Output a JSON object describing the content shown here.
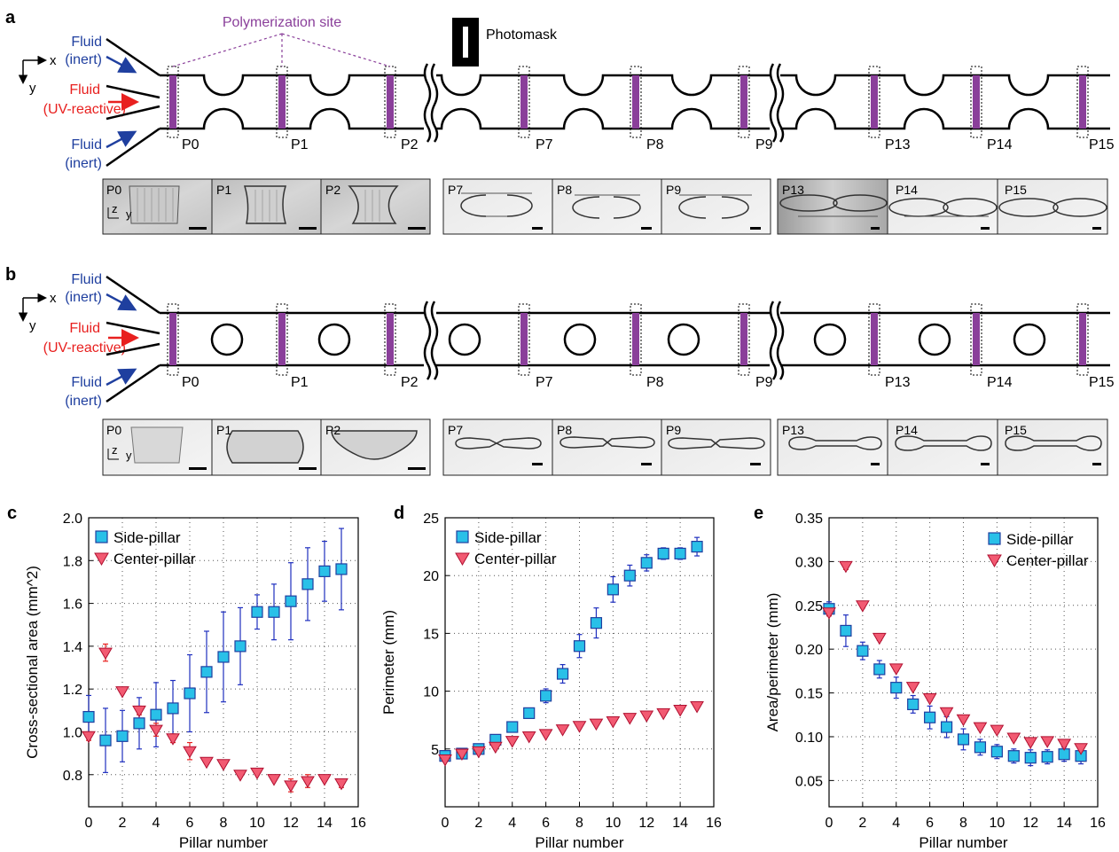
{
  "panels": {
    "a": {
      "letter": "a",
      "callout": "Polymerization site",
      "photomask": "Photomask",
      "axis_x": "x",
      "axis_y": "y",
      "inlet_top": [
        "Fluid",
        "(inert)"
      ],
      "inlet_mid": [
        "Fluid",
        "(UV-reactive)"
      ],
      "inlet_bot": [
        "Fluid",
        "(inert)"
      ],
      "pillar_labels": [
        "P0",
        "P1",
        "P2",
        "P7",
        "P8",
        "P9",
        "P13",
        "P14",
        "P15"
      ],
      "micrograph_labels": [
        "P0",
        "P1",
        "P2",
        "P7",
        "P8",
        "P9",
        "P13",
        "P14",
        "P15"
      ],
      "micro_axes": {
        "z": "z",
        "y": "y"
      }
    },
    "b": {
      "letter": "b",
      "axis_x": "x",
      "axis_y": "y",
      "inlet_top": [
        "Fluid",
        "(inert)"
      ],
      "inlet_mid": [
        "Fluid",
        "(UV-reactive)"
      ],
      "inlet_bot": [
        "Fluid",
        "(inert)"
      ],
      "pillar_labels": [
        "P0",
        "P1",
        "P2",
        "P7",
        "P8",
        "P9",
        "P13",
        "P14",
        "P15"
      ],
      "micrograph_labels": [
        "P0",
        "P1",
        "P2",
        "P7",
        "P8",
        "P9",
        "P13",
        "P14",
        "P15"
      ],
      "micro_axes": {
        "z": "z",
        "y": "y"
      }
    }
  },
  "colors": {
    "fluid_inert": "#1f3f9f",
    "fluid_reactive": "#e8201f",
    "callout": "#8a3f9a",
    "site_fill": "#8a3f9a",
    "side_pillar": "#29c0e8",
    "side_pillar_err": "#1f2fbf",
    "center_pillar": "#f25a72",
    "center_pillar_err": "#e8201f"
  },
  "chart_data": [
    {
      "letter": "c",
      "type": "scatter",
      "xlabel": "Pillar number",
      "ylabel": "Cross-sectional area (mm^2)",
      "xlim": [
        0,
        16
      ],
      "ylim": [
        0.65,
        2.0
      ],
      "xticks": [
        "0",
        "2",
        "4",
        "6",
        "8",
        "10",
        "12",
        "14",
        "16"
      ],
      "yticks": [
        "0.8",
        "1.0",
        "1.2",
        "1.4",
        "1.6",
        "1.8",
        "2.0"
      ],
      "ytick_values": [
        0.8,
        1.0,
        1.2,
        1.4,
        1.6,
        1.8,
        2.0
      ],
      "grid": true,
      "legend": "top-left",
      "series": [
        {
          "name": "Side-pillar",
          "marker": "square",
          "x": [
            0,
            1,
            2,
            3,
            4,
            5,
            6,
            7,
            8,
            9,
            10,
            11,
            12,
            13,
            14,
            15
          ],
          "y": [
            1.07,
            0.96,
            0.98,
            1.04,
            1.08,
            1.11,
            1.18,
            1.28,
            1.35,
            1.4,
            1.56,
            1.56,
            1.61,
            1.69,
            1.75,
            1.76
          ],
          "err": [
            0.1,
            0.15,
            0.12,
            0.12,
            0.15,
            0.13,
            0.18,
            0.19,
            0.21,
            0.18,
            0.08,
            0.13,
            0.18,
            0.17,
            0.14,
            0.19
          ]
        },
        {
          "name": "Center-pillar",
          "marker": "triangle",
          "x": [
            0,
            1,
            2,
            3,
            4,
            5,
            6,
            7,
            8,
            9,
            10,
            11,
            12,
            13,
            14,
            15
          ],
          "y": [
            0.98,
            1.37,
            1.19,
            1.1,
            1.01,
            0.97,
            0.91,
            0.86,
            0.85,
            0.8,
            0.81,
            0.78,
            0.75,
            0.77,
            0.78,
            0.76
          ],
          "err": [
            0.02,
            0.04,
            0.01,
            0.02,
            0.03,
            0.02,
            0.04,
            0.01,
            0.01,
            0.01,
            0.01,
            0.01,
            0.03,
            0.03,
            0.01,
            0.02
          ]
        }
      ]
    },
    {
      "letter": "d",
      "type": "scatter",
      "xlabel": "Pillar number",
      "ylabel": "Perimeter (mm)",
      "xlim": [
        0,
        16
      ],
      "ylim": [
        0,
        25
      ],
      "xticks": [
        "0",
        "2",
        "4",
        "6",
        "8",
        "10",
        "12",
        "14",
        "16"
      ],
      "yticks": [
        "5",
        "10",
        "15",
        "20",
        "25"
      ],
      "ytick_values": [
        5,
        10,
        15,
        20,
        25
      ],
      "grid": true,
      "legend": "top-left",
      "series": [
        {
          "name": "Side-pillar",
          "marker": "square",
          "x": [
            0,
            1,
            2,
            3,
            4,
            5,
            6,
            7,
            8,
            9,
            10,
            11,
            12,
            13,
            14,
            15
          ],
          "y": [
            4.4,
            4.6,
            5.0,
            5.8,
            6.9,
            8.1,
            9.6,
            11.5,
            13.9,
            15.9,
            18.8,
            20.0,
            21.1,
            21.9,
            21.9,
            22.5
          ],
          "err": [
            0.2,
            0.2,
            0.3,
            0.3,
            0.4,
            0.3,
            0.6,
            0.8,
            1.0,
            1.3,
            1.1,
            0.9,
            0.7,
            0.5,
            0.5,
            0.8
          ]
        },
        {
          "name": "Center-pillar",
          "marker": "triangle",
          "x": [
            0,
            1,
            2,
            3,
            4,
            5,
            6,
            7,
            8,
            9,
            10,
            11,
            12,
            13,
            14,
            15
          ],
          "y": [
            4.1,
            4.6,
            4.8,
            5.2,
            5.7,
            6.1,
            6.3,
            6.7,
            7.0,
            7.2,
            7.4,
            7.7,
            7.9,
            8.1,
            8.4,
            8.7
          ],
          "err": [
            0.1,
            0.1,
            0.1,
            0.1,
            0.1,
            0.1,
            0.1,
            0.1,
            0.1,
            0.1,
            0.1,
            0.1,
            0.1,
            0.1,
            0.1,
            0.1
          ]
        }
      ]
    },
    {
      "letter": "e",
      "type": "scatter",
      "xlabel": "Pillar number",
      "ylabel": "Area/perimeter (mm)",
      "xlim": [
        0,
        16
      ],
      "ylim": [
        0.02,
        0.35
      ],
      "xticks": [
        "0",
        "2",
        "4",
        "6",
        "8",
        "10",
        "12",
        "14",
        "16"
      ],
      "yticks": [
        "0.05",
        "0.10",
        "0.15",
        "0.20",
        "0.25",
        "0.30",
        "0.35"
      ],
      "ytick_values": [
        0.05,
        0.1,
        0.15,
        0.2,
        0.25,
        0.3,
        0.35
      ],
      "grid": true,
      "legend": "top-right",
      "series": [
        {
          "name": "Side-pillar",
          "marker": "square",
          "x": [
            0,
            1,
            2,
            3,
            4,
            5,
            6,
            7,
            8,
            9,
            10,
            11,
            12,
            13,
            14,
            15
          ],
          "y": [
            0.246,
            0.221,
            0.198,
            0.177,
            0.156,
            0.137,
            0.122,
            0.111,
            0.097,
            0.088,
            0.083,
            0.078,
            0.076,
            0.077,
            0.08,
            0.078
          ],
          "err": [
            0.008,
            0.018,
            0.01,
            0.01,
            0.012,
            0.01,
            0.013,
            0.012,
            0.012,
            0.009,
            0.008,
            0.008,
            0.009,
            0.008,
            0.008,
            0.009
          ]
        },
        {
          "name": "Center-pillar",
          "marker": "triangle",
          "x": [
            0,
            1,
            2,
            3,
            4,
            5,
            6,
            7,
            8,
            9,
            10,
            11,
            12,
            13,
            14,
            15
          ],
          "y": [
            0.242,
            0.295,
            0.25,
            0.213,
            0.178,
            0.157,
            0.144,
            0.128,
            0.12,
            0.111,
            0.108,
            0.099,
            0.094,
            0.095,
            0.092,
            0.087
          ],
          "err": [
            0.004,
            0.004,
            0.003,
            0.003,
            0.003,
            0.003,
            0.003,
            0.003,
            0.003,
            0.003,
            0.003,
            0.003,
            0.003,
            0.003,
            0.003,
            0.003
          ]
        }
      ]
    }
  ]
}
